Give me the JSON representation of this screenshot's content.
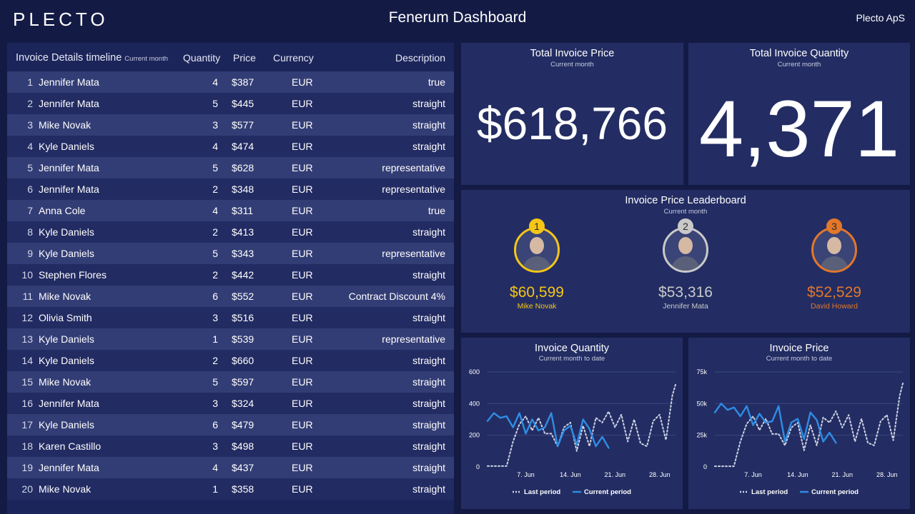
{
  "header": {
    "logo": "PLECTO",
    "title": "Fenerum Dashboard",
    "company": "Plecto ApS"
  },
  "table": {
    "title": "Invoice Details timeline",
    "period": "Current month",
    "columns": {
      "quantity": "Quantity",
      "price": "Price",
      "currency": "Currency",
      "description": "Description"
    },
    "rows": [
      {
        "num": "1",
        "name": "Jennifer Mata",
        "qty": "4",
        "price": "$387",
        "cur": "EUR",
        "desc": "true"
      },
      {
        "num": "2",
        "name": "Jennifer Mata",
        "qty": "5",
        "price": "$445",
        "cur": "EUR",
        "desc": "straight"
      },
      {
        "num": "3",
        "name": "Mike Novak",
        "qty": "3",
        "price": "$577",
        "cur": "EUR",
        "desc": "straight"
      },
      {
        "num": "4",
        "name": "Kyle Daniels",
        "qty": "4",
        "price": "$474",
        "cur": "EUR",
        "desc": "straight"
      },
      {
        "num": "5",
        "name": "Jennifer Mata",
        "qty": "5",
        "price": "$628",
        "cur": "EUR",
        "desc": "representative"
      },
      {
        "num": "6",
        "name": "Jennifer Mata",
        "qty": "2",
        "price": "$348",
        "cur": "EUR",
        "desc": "representative"
      },
      {
        "num": "7",
        "name": "Anna Cole",
        "qty": "4",
        "price": "$311",
        "cur": "EUR",
        "desc": "true"
      },
      {
        "num": "8",
        "name": "Kyle Daniels",
        "qty": "2",
        "price": "$413",
        "cur": "EUR",
        "desc": "straight"
      },
      {
        "num": "9",
        "name": "Kyle Daniels",
        "qty": "5",
        "price": "$343",
        "cur": "EUR",
        "desc": "representative"
      },
      {
        "num": "10",
        "name": "Stephen Flores",
        "qty": "2",
        "price": "$442",
        "cur": "EUR",
        "desc": "straight"
      },
      {
        "num": "11",
        "name": "Mike Novak",
        "qty": "6",
        "price": "$552",
        "cur": "EUR",
        "desc": "Contract Discount 4%"
      },
      {
        "num": "12",
        "name": "Olivia Smith",
        "qty": "3",
        "price": "$516",
        "cur": "EUR",
        "desc": "straight"
      },
      {
        "num": "13",
        "name": "Kyle Daniels",
        "qty": "1",
        "price": "$539",
        "cur": "EUR",
        "desc": "representative"
      },
      {
        "num": "14",
        "name": "Kyle Daniels",
        "qty": "2",
        "price": "$660",
        "cur": "EUR",
        "desc": "straight"
      },
      {
        "num": "15",
        "name": "Mike Novak",
        "qty": "5",
        "price": "$597",
        "cur": "EUR",
        "desc": "straight"
      },
      {
        "num": "16",
        "name": "Jennifer Mata",
        "qty": "3",
        "price": "$324",
        "cur": "EUR",
        "desc": "straight"
      },
      {
        "num": "17",
        "name": "Kyle Daniels",
        "qty": "6",
        "price": "$479",
        "cur": "EUR",
        "desc": "straight"
      },
      {
        "num": "18",
        "name": "Karen Castillo",
        "qty": "3",
        "price": "$498",
        "cur": "EUR",
        "desc": "straight"
      },
      {
        "num": "19",
        "name": "Jennifer Mata",
        "qty": "4",
        "price": "$437",
        "cur": "EUR",
        "desc": "straight"
      },
      {
        "num": "20",
        "name": "Mike Novak",
        "qty": "1",
        "price": "$358",
        "cur": "EUR",
        "desc": "straight"
      }
    ]
  },
  "kpi_price": {
    "title": "Total Invoice Price",
    "period": "Current month",
    "value": "$618,766"
  },
  "kpi_qty": {
    "title": "Total Invoice Quantity",
    "period": "Current month",
    "value": "4,371"
  },
  "leaderboard": {
    "title": "Invoice Price Leaderboard",
    "period": "Current month",
    "leaders": [
      {
        "rank": "1",
        "value": "$60,599",
        "name": "Mike Novak",
        "color": "#f5c518"
      },
      {
        "rank": "2",
        "value": "$53,316",
        "name": "Jennifer Mata",
        "color": "#c9c9c9"
      },
      {
        "rank": "3",
        "value": "$52,529",
        "name": "David Howard",
        "color": "#e3772a"
      }
    ]
  },
  "colors": {
    "current": "#2f8de4",
    "last": "#cfd3e3"
  },
  "chart_data": [
    {
      "type": "line",
      "title": "Invoice Quantity",
      "subtitle": "Current month to date",
      "ylim": [
        0,
        600
      ],
      "yticks": [
        "0",
        "200",
        "400",
        "600"
      ],
      "xticks": [
        "7. Jun",
        "14. Jun",
        "21. Jun",
        "28. Jun"
      ],
      "xtick_days": [
        7,
        14,
        21,
        28
      ],
      "xlim": [
        1,
        30.5
      ],
      "series": [
        {
          "name": "Last period",
          "style": "dotted",
          "x": [
            1,
            2,
            3,
            4,
            5,
            6,
            7,
            8,
            9,
            10,
            11,
            12,
            13,
            14,
            15,
            16,
            17,
            18,
            19,
            20,
            21,
            22,
            23,
            24,
            25,
            26,
            27,
            28,
            29,
            30,
            30.5
          ],
          "values": [
            5,
            5,
            5,
            5,
            160,
            270,
            320,
            230,
            310,
            210,
            210,
            130,
            250,
            280,
            100,
            260,
            130,
            310,
            280,
            350,
            250,
            330,
            160,
            300,
            150,
            130,
            290,
            330,
            170,
            450,
            520
          ]
        },
        {
          "name": "Current period",
          "style": "solid",
          "x": [
            1,
            2,
            3,
            4,
            5,
            6,
            7,
            8,
            9,
            10,
            11,
            12,
            13,
            14,
            15,
            16,
            17,
            18,
            19,
            20
          ],
          "values": [
            290,
            340,
            310,
            320,
            250,
            340,
            210,
            300,
            230,
            250,
            340,
            130,
            230,
            260,
            140,
            300,
            240,
            130,
            190,
            120
          ]
        }
      ]
    },
    {
      "type": "line",
      "title": "Invoice Price",
      "subtitle": "Current month to date",
      "ylim": [
        0,
        75000
      ],
      "yticks": [
        "0",
        "25k",
        "50k",
        "75k"
      ],
      "xticks": [
        "7. Jun",
        "14. Jun",
        "21. Jun",
        "28. Jun"
      ],
      "xtick_days": [
        7,
        14,
        21,
        28
      ],
      "xlim": [
        1,
        30.5
      ],
      "series": [
        {
          "name": "Last period",
          "style": "dotted",
          "x": [
            1,
            2,
            3,
            4,
            5,
            6,
            7,
            8,
            9,
            10,
            11,
            12,
            13,
            14,
            15,
            16,
            17,
            18,
            19,
            20,
            21,
            22,
            23,
            24,
            25,
            26,
            27,
            28,
            29,
            30,
            30.5
          ],
          "values": [
            500,
            500,
            500,
            500,
            20000,
            34000,
            40000,
            29000,
            38000,
            26000,
            26000,
            17000,
            31000,
            35000,
            13000,
            33000,
            17000,
            39000,
            35000,
            44000,
            31000,
            41000,
            20000,
            38000,
            19000,
            17000,
            36000,
            41000,
            21000,
            56000,
            66000
          ]
        },
        {
          "name": "Current period",
          "style": "solid",
          "x": [
            1,
            2,
            3,
            4,
            5,
            6,
            7,
            8,
            9,
            10,
            11,
            12,
            13,
            14,
            15,
            16,
            17,
            18,
            19,
            20
          ],
          "values": [
            43000,
            50000,
            45000,
            47000,
            40000,
            48000,
            33000,
            42000,
            35000,
            36000,
            48000,
            20000,
            35000,
            38000,
            22000,
            43000,
            37000,
            20000,
            27000,
            19000
          ]
        }
      ]
    }
  ]
}
